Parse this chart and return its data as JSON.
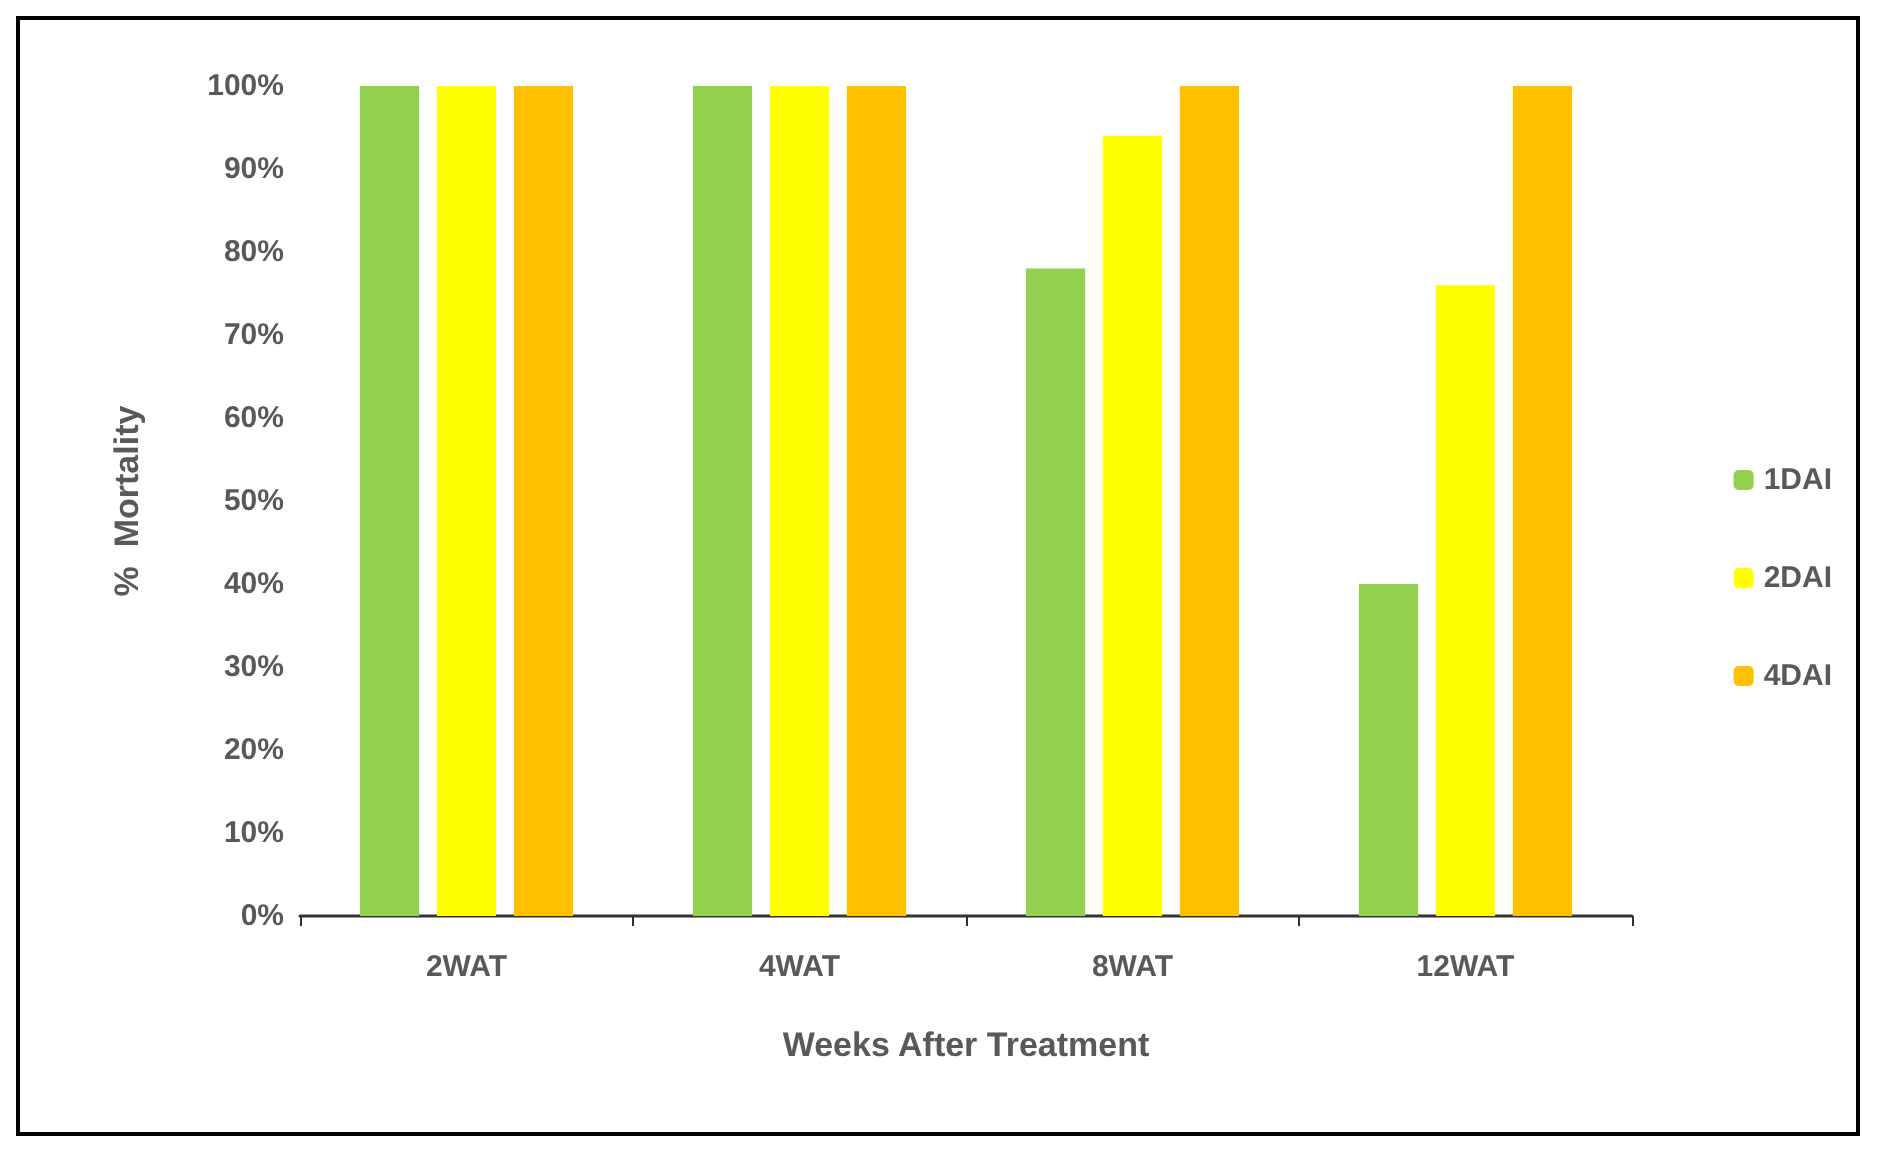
{
  "chart_data": {
    "type": "bar",
    "xlabel": "Weeks After Treatment",
    "ylabel": "%  Mortality",
    "categories": [
      "2WAT",
      "4WAT",
      "8WAT",
      "12WAT"
    ],
    "series": [
      {
        "name": "1DAI",
        "color": "#92d050",
        "values": [
          100,
          100,
          78,
          40
        ]
      },
      {
        "name": "2DAI",
        "color": "#ffff00",
        "values": [
          100,
          100,
          94,
          76
        ]
      },
      {
        "name": "4DAI",
        "color": "#ffc000",
        "values": [
          100,
          100,
          100,
          100
        ]
      }
    ],
    "ylim": [
      0,
      100
    ],
    "yticks": [
      {
        "value": 0,
        "label": "0%"
      },
      {
        "value": 10,
        "label": "10%"
      },
      {
        "value": 20,
        "label": "20%"
      },
      {
        "value": 30,
        "label": "30%"
      },
      {
        "value": 40,
        "label": "40%"
      },
      {
        "value": 50,
        "label": "50%"
      },
      {
        "value": 60,
        "label": "60%"
      },
      {
        "value": 70,
        "label": "70%"
      },
      {
        "value": 80,
        "label": "80%"
      },
      {
        "value": 90,
        "label": "90%"
      },
      {
        "value": 100,
        "label": "100%"
      }
    ],
    "grid": false,
    "legend": "right"
  }
}
